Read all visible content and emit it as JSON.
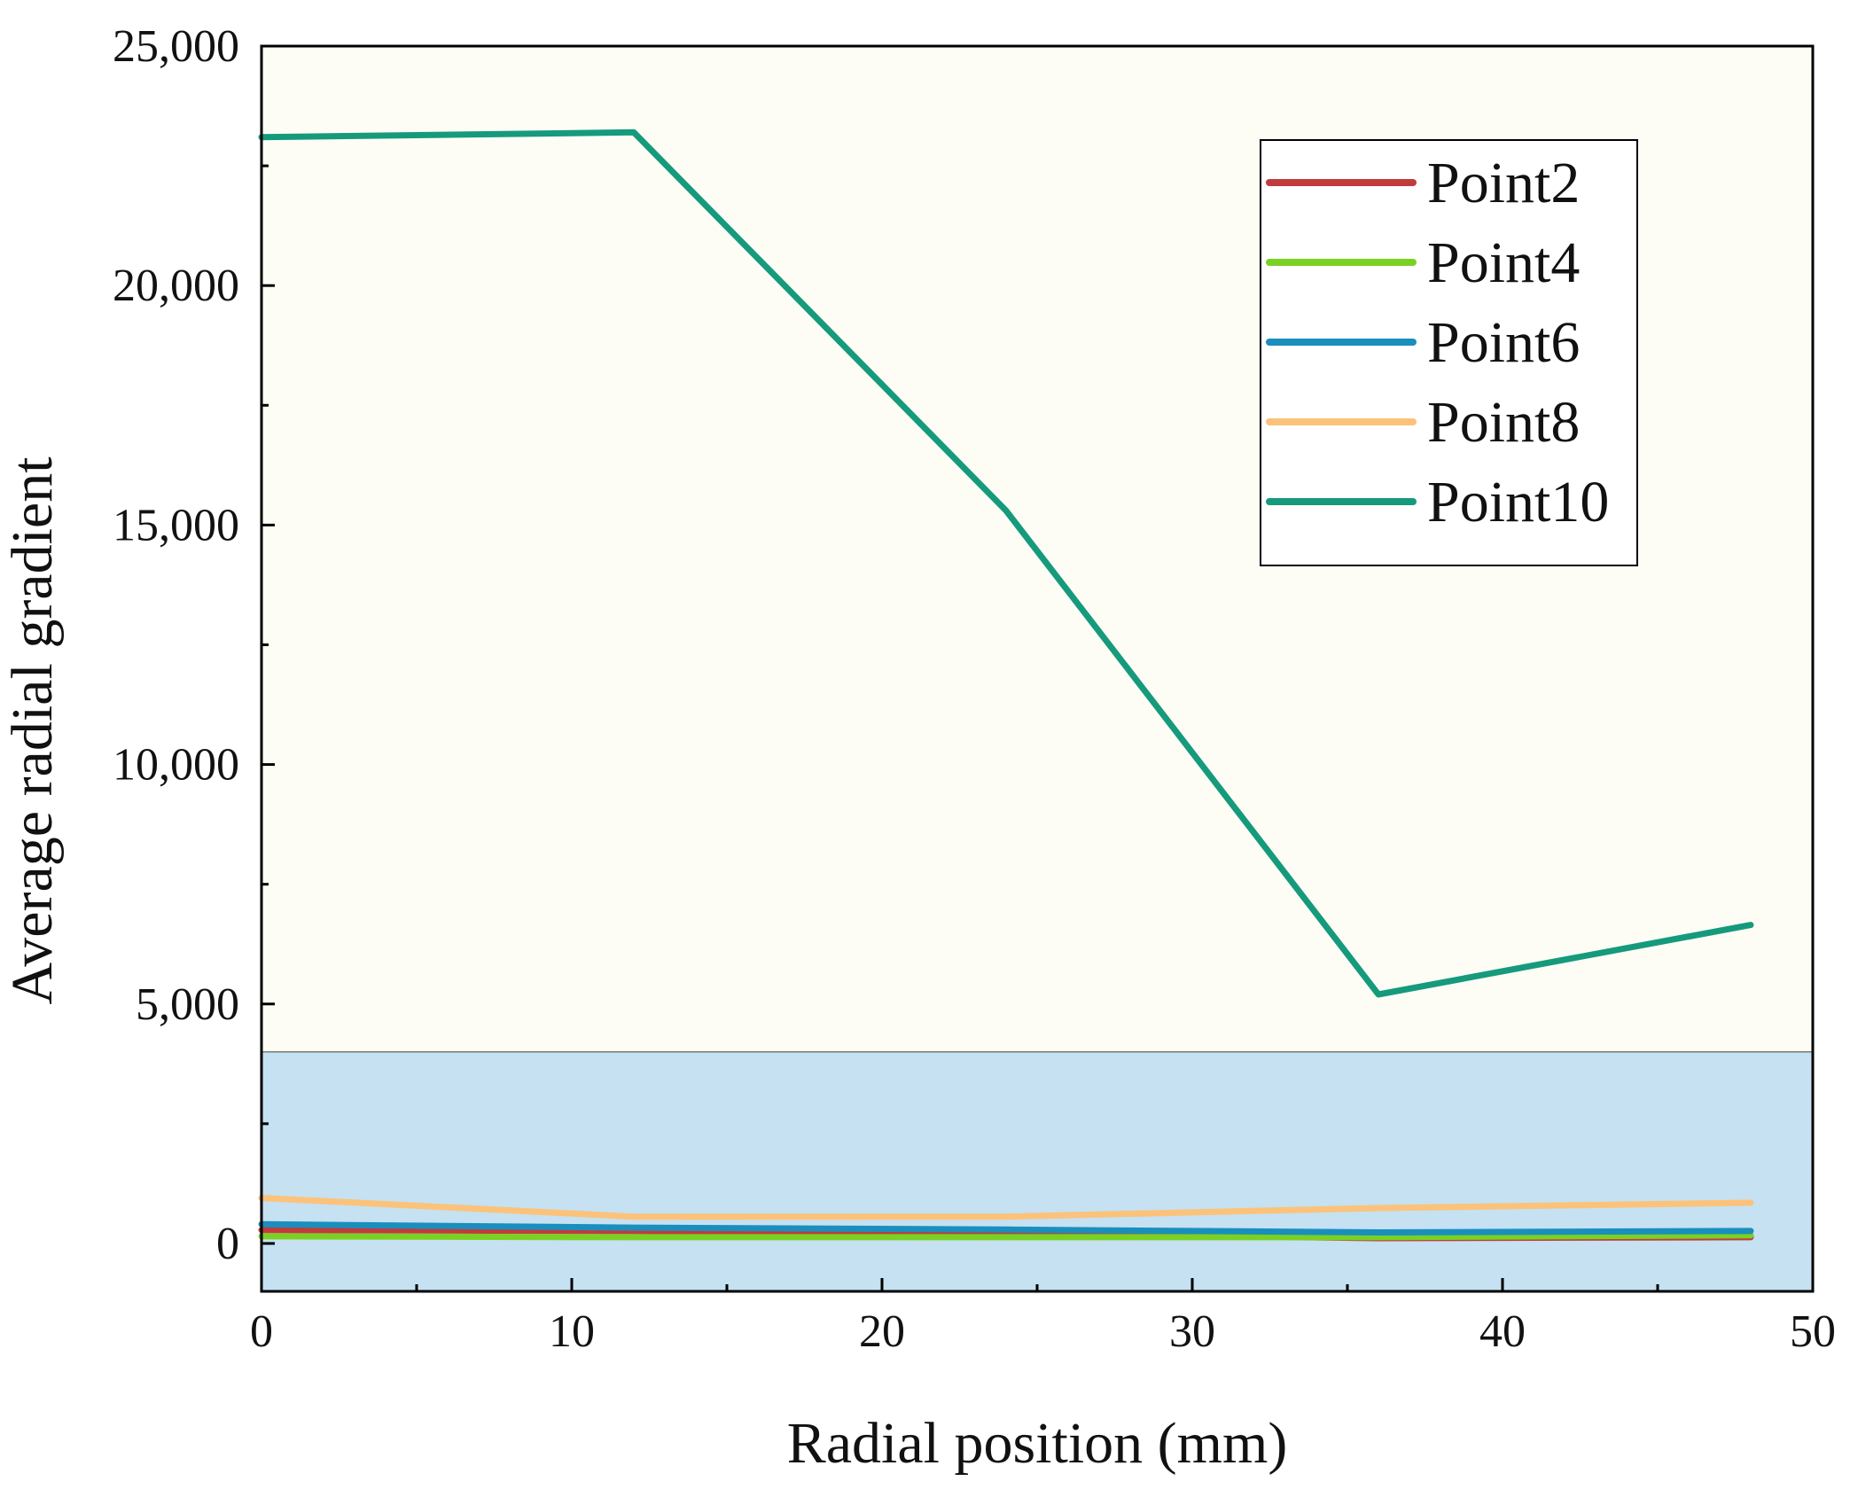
{
  "chart_data": {
    "type": "line",
    "title": "",
    "xlabel": "Radial position (mm)",
    "ylabel": "Average radial gradient",
    "xlim": [
      0,
      50
    ],
    "ylim": [
      -1000,
      25000
    ],
    "x_ticks": [
      0,
      10,
      20,
      30,
      40,
      50
    ],
    "x_tick_labels": [
      "0",
      "10",
      "20",
      "30",
      "40",
      "50"
    ],
    "x_minor_ticks": [
      5,
      15,
      25,
      35,
      45
    ],
    "y_ticks": [
      0,
      5000,
      10000,
      15000,
      20000,
      25000
    ],
    "y_tick_labels": [
      "0",
      "5,000",
      "10,000",
      "15,000",
      "20,000",
      "25,000"
    ],
    "y_minor_ticks": [
      2500,
      7500,
      12500,
      17500,
      22500
    ],
    "background_bands": [
      {
        "y_from": -1000,
        "y_to": 4000,
        "color": "#c5e1f2"
      },
      {
        "y_from": 4000,
        "y_to": 25000,
        "color": "#fdfdf6"
      }
    ],
    "legend_position": "top-right",
    "x": [
      0,
      12,
      24,
      36,
      48
    ],
    "series": [
      {
        "name": "Point2",
        "color": "#c23b3b",
        "values": [
          280,
          260,
          220,
          110,
          130
        ]
      },
      {
        "name": "Point4",
        "color": "#7ad123",
        "values": [
          150,
          130,
          130,
          130,
          170
        ]
      },
      {
        "name": "Point6",
        "color": "#1a8fbd",
        "values": [
          400,
          330,
          290,
          230,
          260
        ]
      },
      {
        "name": "Point8",
        "color": "#fcc27a",
        "values": [
          950,
          560,
          560,
          740,
          850
        ]
      },
      {
        "name": "Point10",
        "color": "#169a7c",
        "values": [
          23100,
          23200,
          15300,
          5200,
          6650
        ]
      }
    ]
  }
}
